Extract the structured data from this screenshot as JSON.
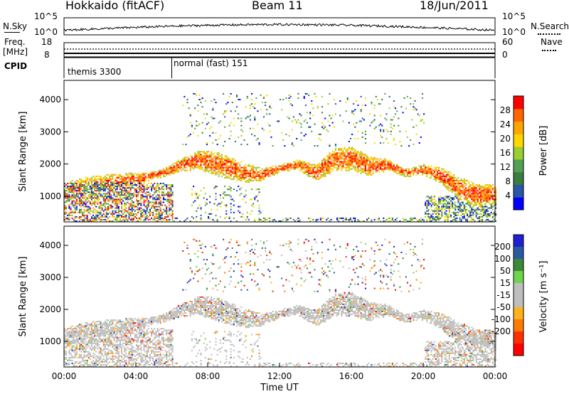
{
  "header": {
    "station": "Hokkaido (fitACF)",
    "beam": "Beam 11",
    "date": "18/Jun/2011"
  },
  "nsky_panel": {
    "left_label": "N.Sky",
    "right_label": "N.Search",
    "left_ticks": [
      "10^5",
      "10^0"
    ],
    "right_ticks": [
      "10^5",
      "10^0"
    ]
  },
  "freq_panel": {
    "left_label_1": "Freq.",
    "left_label_2": "[MHz]",
    "left_ticks": [
      "18",
      "8"
    ],
    "right_ticks": [
      "60",
      "0"
    ],
    "right_label": "Nave"
  },
  "cpid_panel": {
    "label": "CPID",
    "modes": [
      "themis 3300",
      "normal (fast) 151"
    ],
    "mode_change_hour": 6.0
  },
  "colors": {
    "power_scale": [
      "#0000ff",
      "#2a57a8",
      "#3a7d3e",
      "#54a052",
      "#9acd32",
      "#ffd700",
      "#ffa500",
      "#ff6600",
      "#ff0000"
    ],
    "velocity_scale": [
      "#2020d0",
      "#2d5a9f",
      "#3a8a3a",
      "#6fd34b",
      "#bebebe",
      "#bebebe",
      "#ffb21a",
      "#ff7a00",
      "#ff3000",
      "#ff0000"
    ],
    "ground_scatter": "#bebebe"
  },
  "chart_data": [
    {
      "type": "heatmap",
      "panel": "power",
      "xlabel": "",
      "ylabel": "Slant Range [km]",
      "xlim_hours": [
        0,
        24
      ],
      "ylim": [
        200,
        4600
      ],
      "yticks": [
        1000,
        2000,
        3000,
        4000
      ],
      "colorbar_label": "Power [dB]",
      "colorbar_ticks": [
        "4",
        "8",
        "12",
        "16",
        "20",
        "24",
        "28"
      ],
      "colorbar_range": [
        0,
        32
      ]
    },
    {
      "type": "heatmap",
      "panel": "velocity",
      "xlabel": "Time UT",
      "ylabel": "Slant Range [km]",
      "xlim_hours": [
        0,
        24
      ],
      "ylim": [
        200,
        4600
      ],
      "yticks": [
        1000,
        2000,
        3000,
        4000
      ],
      "xticks": [
        "00:00",
        "04:00",
        "08:00",
        "12:00",
        "16:00",
        "20:00",
        "00:00"
      ],
      "colorbar_label": "Velocity [m s⁻¹]",
      "colorbar_ticks": [
        "200",
        "100",
        "50",
        "15",
        "-15",
        "-50",
        "-100",
        "-200"
      ]
    }
  ]
}
